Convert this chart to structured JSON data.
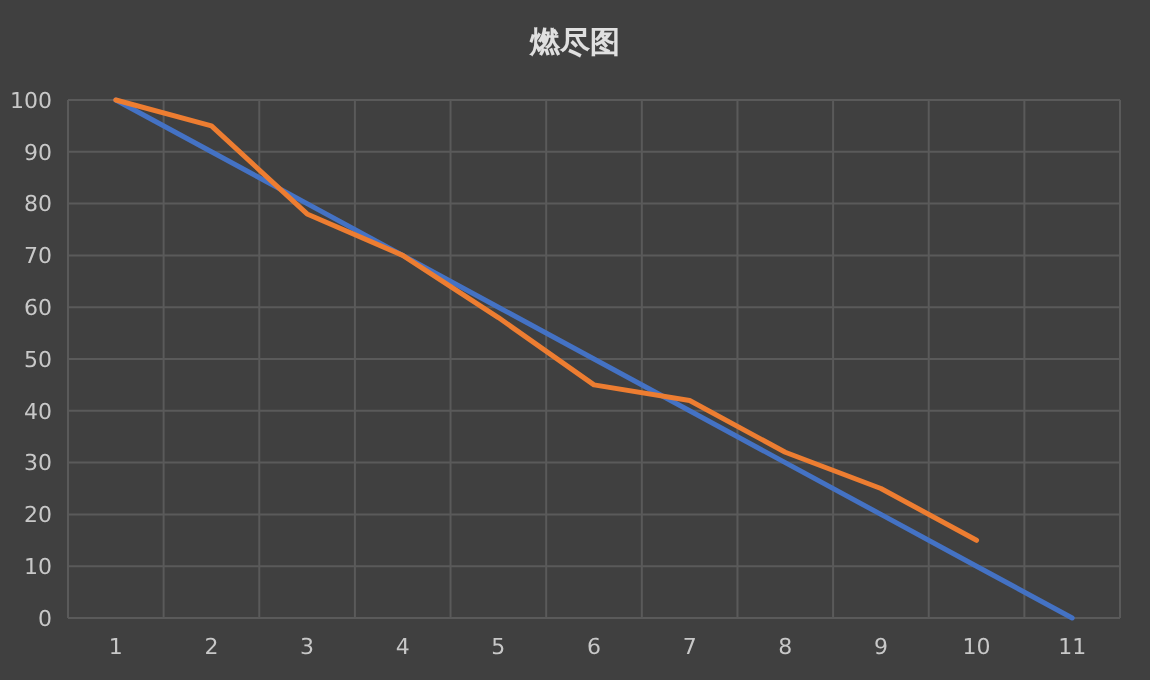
{
  "chart_data": {
    "type": "line",
    "title": "燃尽图",
    "categories": [
      "1",
      "2",
      "3",
      "4",
      "5",
      "6",
      "7",
      "8",
      "9",
      "10",
      "11"
    ],
    "series": [
      {
        "color": "#4472c4",
        "values": [
          100,
          90,
          80,
          70,
          60,
          50,
          40,
          30,
          20,
          10,
          0
        ]
      },
      {
        "color": "#ed7d31",
        "values": [
          100,
          95,
          78,
          70,
          58,
          45,
          42,
          32,
          25,
          15,
          null
        ]
      }
    ],
    "ylim": [
      0,
      100
    ],
    "yticks": [
      0,
      10,
      20,
      30,
      40,
      50,
      60,
      70,
      80,
      90,
      100
    ],
    "grid": true,
    "marker": "none",
    "line_style": "solid"
  }
}
